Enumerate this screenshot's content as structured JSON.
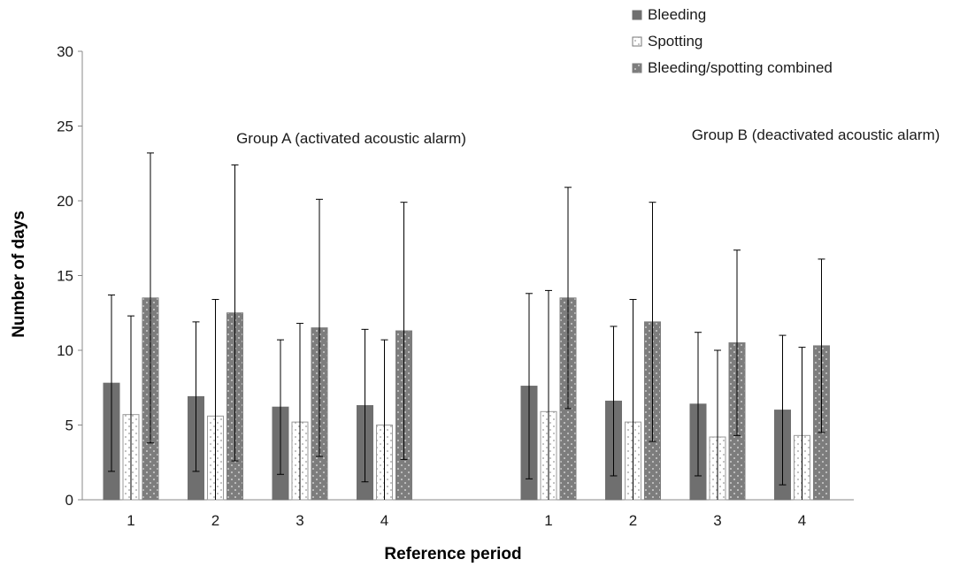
{
  "chart_data": {
    "type": "bar",
    "ylabel": "Number of days",
    "xlabel": "Reference period",
    "ylim": [
      0,
      30
    ],
    "yticks": [
      0,
      5,
      10,
      15,
      20,
      25,
      30
    ],
    "grid": false,
    "legend_position": "top-right",
    "colors": {
      "Bleeding": "#6f6f6f",
      "Spotting": "#ffffff",
      "Bleeding/spotting combined": "#7d7d7d",
      "axis": "#888888",
      "error_bar": "#000000"
    },
    "legend": [
      {
        "name": "Bleeding",
        "pattern": "solid"
      },
      {
        "name": "Spotting",
        "pattern": "dotted-white"
      },
      {
        "name": "Bleeding/spotting combined",
        "pattern": "dotted-gray"
      }
    ],
    "groups": [
      {
        "label": "Group A (activated acoustic alarm)",
        "categories": [
          "1",
          "2",
          "3",
          "4"
        ],
        "series": [
          {
            "name": "Bleeding",
            "values": [
              7.8,
              6.9,
              6.2,
              6.3
            ],
            "error_low": [
              1.9,
              1.9,
              1.7,
              1.2
            ],
            "error_high": [
              13.7,
              11.9,
              10.7,
              11.4
            ]
          },
          {
            "name": "Spotting",
            "values": [
              5.7,
              5.6,
              5.2,
              5.0
            ],
            "error_low": [
              0,
              0,
              0,
              0
            ],
            "error_high": [
              12.3,
              13.4,
              11.8,
              10.7
            ]
          },
          {
            "name": "Bleeding/spotting combined",
            "values": [
              13.5,
              12.5,
              11.5,
              11.3
            ],
            "error_low": [
              3.8,
              2.6,
              2.9,
              2.7
            ],
            "error_high": [
              23.2,
              22.4,
              20.1,
              19.9
            ]
          }
        ]
      },
      {
        "label": "Group B (deactivated acoustic alarm)",
        "categories": [
          "1",
          "2",
          "3",
          "4"
        ],
        "series": [
          {
            "name": "Bleeding",
            "values": [
              7.6,
              6.6,
              6.4,
              6.0
            ],
            "error_low": [
              1.4,
              1.6,
              1.6,
              1.0
            ],
            "error_high": [
              13.8,
              11.6,
              11.2,
              11.0
            ]
          },
          {
            "name": "Spotting",
            "values": [
              5.9,
              5.2,
              4.2,
              4.3
            ],
            "error_low": [
              0,
              0,
              0,
              0
            ],
            "error_high": [
              14.0,
              13.4,
              10.0,
              10.2
            ]
          },
          {
            "name": "Bleeding/spotting combined",
            "values": [
              13.5,
              11.9,
              10.5,
              10.3
            ],
            "error_low": [
              6.1,
              3.9,
              4.3,
              4.5
            ],
            "error_high": [
              20.9,
              19.9,
              16.7,
              16.1
            ]
          }
        ]
      }
    ]
  }
}
